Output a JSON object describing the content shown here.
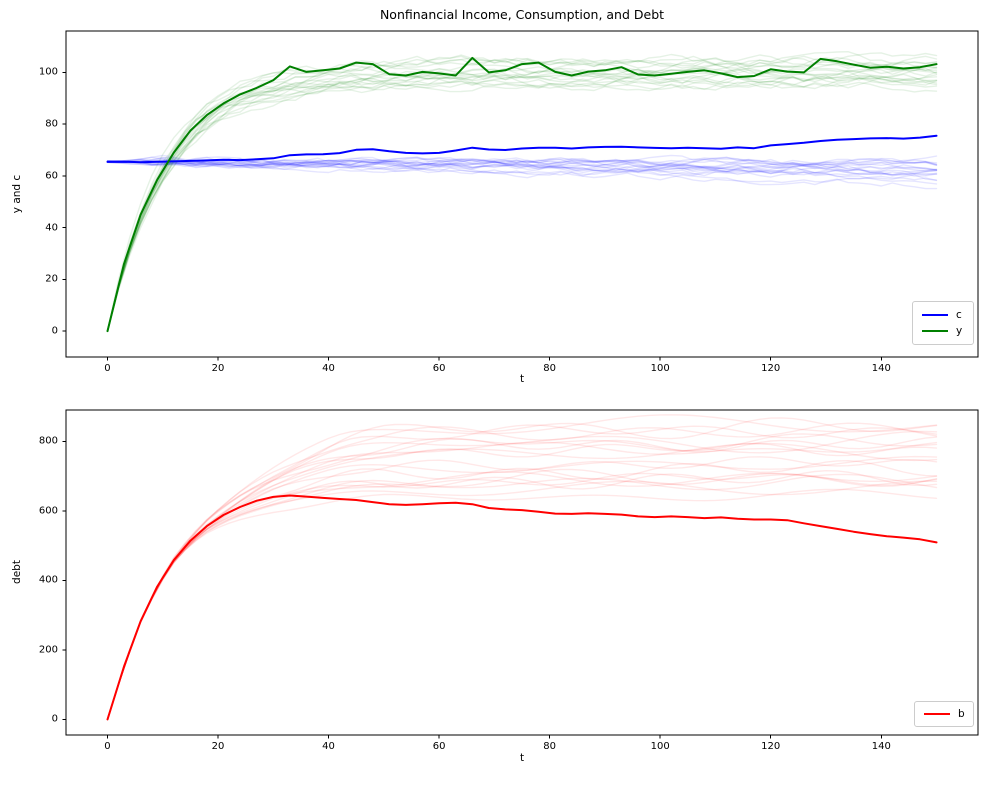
{
  "figure": {
    "title": "Nonfinancial Income, Consumption, and Debt",
    "background_color": "#ffffff",
    "text_color": "#000000"
  },
  "chart_data": [
    {
      "type": "line",
      "title": "Nonfinancial Income, Consumption, and Debt",
      "xlabel": "t",
      "ylabel": "y and c",
      "xlim": [
        -7.5,
        157.5
      ],
      "ylim": [
        -10,
        116
      ],
      "xticks": [
        0,
        20,
        40,
        60,
        80,
        100,
        120,
        140
      ],
      "yticks": [
        0,
        20,
        40,
        60,
        80,
        100
      ],
      "grid": false,
      "legend": {
        "position": "lower right",
        "entries": [
          {
            "label": "c",
            "color": "#0000ff"
          },
          {
            "label": "y",
            "color": "#008000"
          }
        ]
      },
      "t": [
        0,
        3,
        6,
        9,
        12,
        15,
        18,
        21,
        24,
        27,
        30,
        33,
        36,
        39,
        42,
        45,
        48,
        51,
        54,
        57,
        60,
        63,
        66,
        69,
        72,
        75,
        78,
        81,
        84,
        87,
        90,
        93,
        96,
        99,
        102,
        105,
        108,
        111,
        114,
        117,
        120,
        123,
        126,
        129,
        132,
        135,
        138,
        141,
        144,
        147,
        150
      ],
      "series": [
        {
          "name": "c",
          "color": "#0000ff",
          "linewidth": 2,
          "values": [
            65.4,
            65.5,
            65.3,
            65.5,
            65.6,
            65.8,
            66.0,
            66.2,
            66.1,
            66.4,
            66.8,
            68.0,
            68.3,
            68.4,
            68.8,
            70.1,
            70.3,
            69.5,
            68.9,
            68.7,
            68.9,
            69.8,
            70.9,
            70.2,
            70.0,
            70.6,
            70.9,
            70.9,
            70.6,
            71.0,
            71.2,
            71.3,
            71.0,
            70.8,
            70.7,
            70.9,
            70.7,
            70.5,
            71.0,
            70.7,
            71.8,
            72.3,
            72.8,
            73.5,
            74.0,
            74.2,
            74.5,
            74.6,
            74.4,
            74.8,
            75.5
          ]
        },
        {
          "name": "y",
          "color": "#008000",
          "linewidth": 2,
          "values": [
            0,
            26,
            45,
            58.5,
            69,
            77.5,
            83.5,
            88,
            91.5,
            94,
            97,
            102.3,
            100.2,
            100.8,
            101.5,
            103.8,
            103.2,
            99.3,
            98.8,
            100.2,
            99.6,
            98.8,
            105.6,
            100.0,
            100.8,
            103.2,
            103.8,
            100.2,
            98.8,
            100.3,
            100.8,
            102.0,
            99.2,
            98.8,
            99.5,
            100.2,
            100.8,
            99.6,
            98.2,
            98.6,
            101.2,
            100.3,
            100.0,
            105.2,
            104.3,
            103.0,
            101.8,
            102.2,
            101.5,
            102.0,
            103.2
          ]
        }
      ],
      "simulated_paths": [
        {
          "follows": "c",
          "color": "#0000ff",
          "alpha": 0.1,
          "count": 20,
          "linewidth": 1.4,
          "seed": 2000,
          "model": {
            "kind": "random-walk",
            "start": 65.5,
            "drift_range": [
              -0.06,
              0.005
            ],
            "noise": 2.2,
            "spread_ramp_t": 10,
            "clamp": [
              55,
              70
            ]
          }
        },
        {
          "follows": "y",
          "color": "#008000",
          "alpha": 0.1,
          "count": 20,
          "linewidth": 1.4,
          "seed": 1000,
          "model": {
            "kind": "saturating",
            "asymptote_range": [
              95,
              105
            ],
            "tau_range": [
              9.5,
              11.5
            ],
            "noise": 3.0,
            "noise_ramp_t": 15
          }
        }
      ]
    },
    {
      "type": "line",
      "title": "",
      "xlabel": "t",
      "ylabel": "debt",
      "xlim": [
        -7.5,
        157.5
      ],
      "ylim": [
        -45,
        890
      ],
      "xticks": [
        0,
        20,
        40,
        60,
        80,
        100,
        120,
        140
      ],
      "yticks": [
        0,
        200,
        400,
        600,
        800
      ],
      "grid": false,
      "legend": {
        "position": "lower right",
        "entries": [
          {
            "label": "b",
            "color": "#ff0000"
          }
        ]
      },
      "t": [
        0,
        3,
        6,
        9,
        12,
        15,
        18,
        21,
        24,
        27,
        30,
        33,
        36,
        39,
        42,
        45,
        48,
        51,
        54,
        57,
        60,
        63,
        66,
        69,
        72,
        75,
        78,
        81,
        84,
        87,
        90,
        93,
        96,
        99,
        102,
        105,
        108,
        111,
        114,
        117,
        120,
        123,
        126,
        129,
        132,
        135,
        138,
        141,
        144,
        147,
        150
      ],
      "series": [
        {
          "name": "b",
          "color": "#ff0000",
          "linewidth": 2,
          "values": [
            0,
            152,
            282,
            382,
            458,
            514,
            556,
            588,
            611,
            629,
            640,
            644,
            641,
            637,
            634,
            631,
            625,
            619,
            617,
            619,
            622,
            623,
            619,
            608,
            604,
            602,
            597,
            592,
            591,
            593,
            591,
            589,
            584,
            582,
            584,
            582,
            579,
            581,
            577,
            575,
            575,
            573,
            564,
            556,
            548,
            540,
            533,
            527,
            523,
            518,
            509
          ]
        }
      ],
      "simulated_paths": [
        {
          "follows": "b",
          "color": "#ff0000",
          "alpha": 0.09,
          "count": 20,
          "linewidth": 1.4,
          "seed": 3000,
          "model": {
            "kind": "blend-to-level",
            "level_range": [
              580,
              850
            ],
            "blend_start_t": 6,
            "blend_len_t": 40,
            "level_tau": 13,
            "wiggle_amp": [
              8,
              20
            ],
            "wiggle_ramp_t": 50
          }
        }
      ]
    }
  ]
}
